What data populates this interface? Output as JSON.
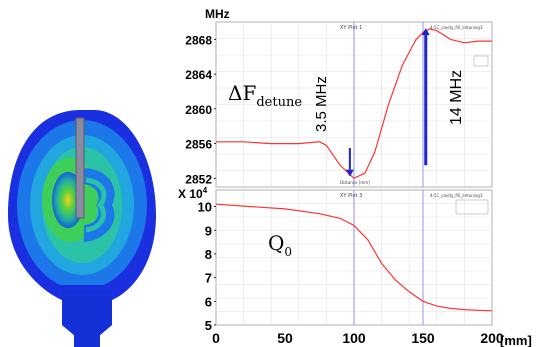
{
  "chart_data": [
    {
      "type": "line",
      "title": "XY Plot 1",
      "header_right": "4-5C_cavity_fill_detuning3",
      "unit_label": "MHz",
      "x_axis_label_small": "Distance [mm]",
      "xlim": [
        0,
        200
      ],
      "ylim": [
        2851,
        2870
      ],
      "yticks": [
        2852,
        2856,
        2860,
        2864,
        2868
      ],
      "ytick_labels": [
        "2852",
        "2856",
        "2860",
        "2864",
        "2868"
      ],
      "grid": true,
      "series": [
        {
          "x": [
            0,
            20,
            40,
            60,
            75,
            80,
            90,
            100,
            108,
            115,
            125,
            135,
            145,
            150,
            155,
            160,
            170,
            180,
            190,
            200
          ],
          "y": [
            2856.2,
            2856.2,
            2856.0,
            2856.0,
            2856.2,
            2855.8,
            2853.5,
            2852.0,
            2852.6,
            2855.0,
            2860.5,
            2865.0,
            2868.0,
            2868.8,
            2869.2,
            2869.0,
            2868.0,
            2867.6,
            2867.8,
            2867.8
          ]
        }
      ],
      "annotations": [
        {
          "text": "ΔF",
          "subscript": "detune"
        },
        {
          "text": "3.5 MHz",
          "arrow": "down",
          "x": 97,
          "y_from": 2855.5,
          "y_to": 2852.2
        },
        {
          "text": "14 MHz",
          "arrow": "up",
          "x": 152,
          "y_from": 2853.5,
          "y_to": 2869.3
        }
      ],
      "vlines": [
        100,
        150
      ]
    },
    {
      "type": "line",
      "title": "XY Plot 3",
      "header_right": "4-5C_cavity_fill_detuning3",
      "unit_label": "X 10",
      "unit_exponent": "4",
      "xlim": [
        0,
        200
      ],
      "xticks": [
        0,
        50,
        100,
        150,
        200
      ],
      "xtick_labels": [
        "0",
        "50",
        "100",
        "150",
        "200"
      ],
      "xlabel": "[mm]",
      "ylim": [
        5,
        10.7
      ],
      "yticks": [
        5,
        6,
        7,
        8,
        9,
        10
      ],
      "ytick_labels": [
        "5",
        "6",
        "7",
        "8",
        "9",
        "10"
      ],
      "grid": true,
      "series": [
        {
          "x": [
            0,
            25,
            50,
            75,
            90,
            100,
            110,
            120,
            130,
            140,
            150,
            160,
            170,
            180,
            190,
            200
          ],
          "y": [
            10.1,
            10.0,
            9.9,
            9.7,
            9.5,
            9.2,
            8.6,
            7.6,
            6.9,
            6.4,
            6.0,
            5.8,
            5.7,
            5.65,
            5.62,
            5.6
          ]
        }
      ],
      "annotations": [
        {
          "text": "Q",
          "subscript": "0"
        }
      ],
      "vlines": [
        100,
        150
      ]
    }
  ],
  "colors": {
    "curve": "#ff3333",
    "arrow": "#1a24c8",
    "vline": "#8a8ae8",
    "grid": "#e0e0e0",
    "ticks": "#000000"
  },
  "left_image": "cavity-field-simulation"
}
